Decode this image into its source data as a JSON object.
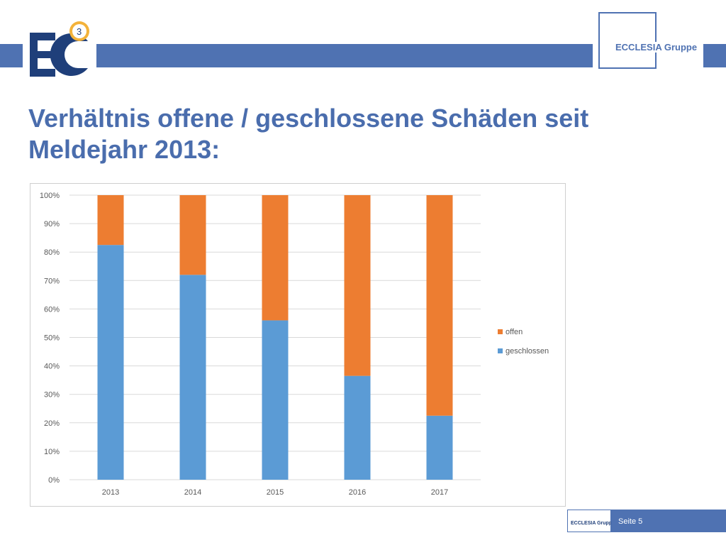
{
  "header": {
    "logo_left_badge": "3",
    "logo_right_text": "ECCLESIA Gruppe",
    "brand_color": "#4f72b2"
  },
  "slide": {
    "title": "Verhältnis offene / geschlossene Schäden seit Meldejahr 2013:"
  },
  "footer": {
    "logo_text": "ECCLESIA Gruppe",
    "page_label": "Seite 5"
  },
  "chart_data": {
    "type": "bar",
    "stacked": true,
    "categories": [
      "2013",
      "2014",
      "2015",
      "2016",
      "2017"
    ],
    "series": [
      {
        "name": "geschlossen",
        "color": "#5b9bd5",
        "values": [
          82.5,
          72,
          56,
          36.5,
          22.5
        ]
      },
      {
        "name": "offen",
        "color": "#ed7d31",
        "values": [
          17.5,
          28,
          44,
          63.5,
          77.5
        ]
      }
    ],
    "yticks": [
      "0%",
      "10%",
      "20%",
      "30%",
      "40%",
      "50%",
      "60%",
      "70%",
      "80%",
      "90%",
      "100%"
    ],
    "ylim": [
      0,
      100
    ],
    "grid": true,
    "legend_position": "right"
  }
}
